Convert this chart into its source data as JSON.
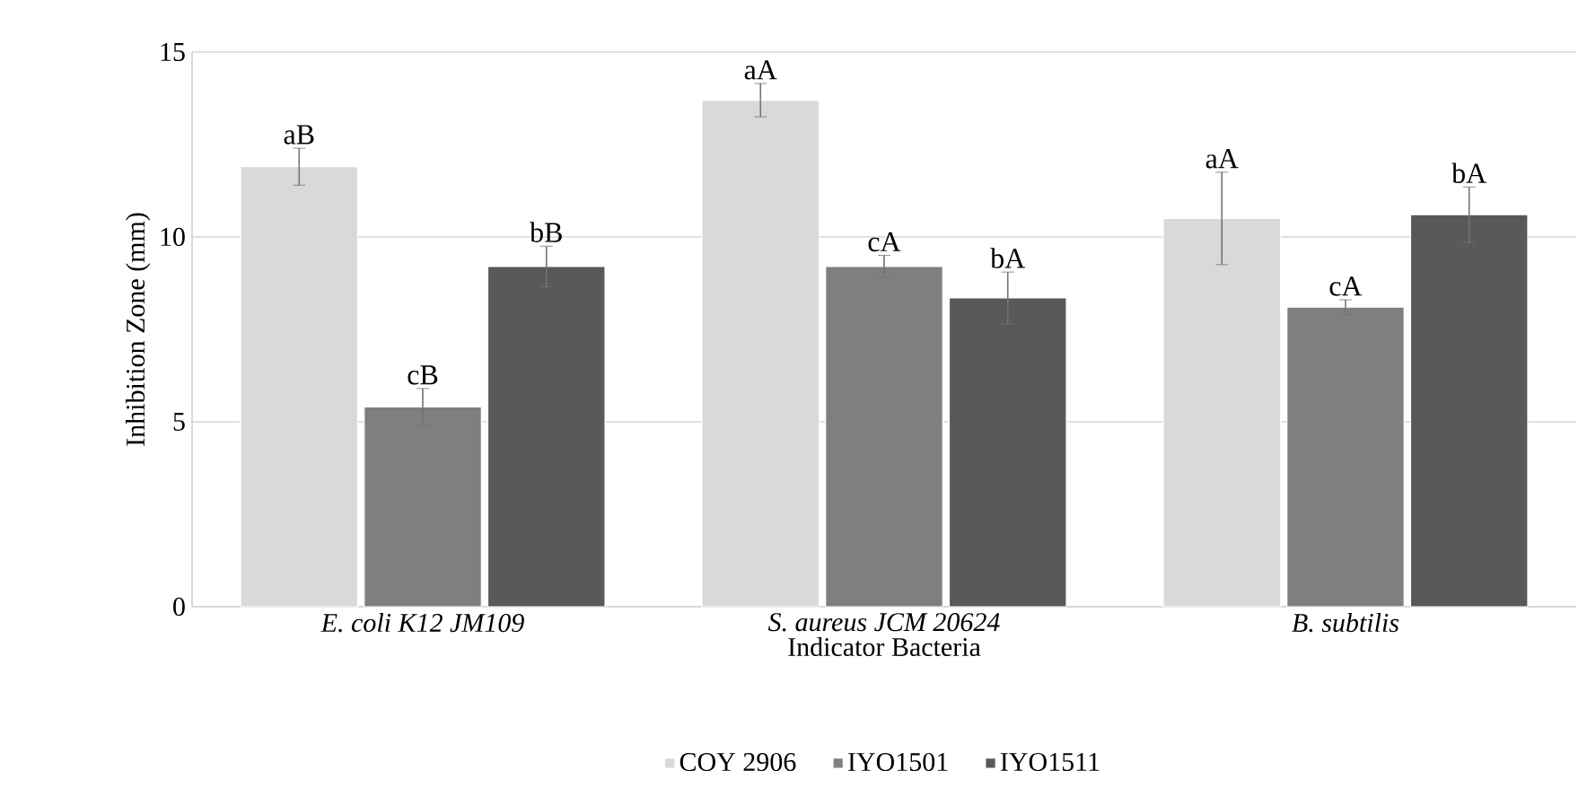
{
  "chart_data": {
    "type": "bar",
    "xlabel": "Indicator Bacteria",
    "ylabel": "Inhibition Zone (mm)",
    "categories": [
      "E. coli K12 JM109",
      "S. aureus JCM 20624",
      "B. subtilis"
    ],
    "series": [
      {
        "name": "COY 2906",
        "color": "#d9d9d9",
        "values": [
          11.9,
          13.7,
          10.5
        ],
        "errors": [
          0.5,
          0.45,
          1.25
        ],
        "value_labels": [
          "aB",
          "aA",
          "aA"
        ]
      },
      {
        "name": "IYO1501",
        "color": "#7f7f7f",
        "values": [
          5.4,
          9.2,
          8.1
        ],
        "errors": [
          0.5,
          0.3,
          0.2
        ],
        "value_labels": [
          "cB",
          "cA",
          "cA"
        ]
      },
      {
        "name": "IYO1511",
        "color": "#595959",
        "values": [
          9.2,
          8.35,
          10.6
        ],
        "errors": [
          0.55,
          0.7,
          0.75
        ],
        "value_labels": [
          "bB",
          "bA",
          "bA"
        ]
      }
    ],
    "ylim": [
      0,
      15
    ],
    "yticks": [
      0,
      5,
      10,
      15
    ],
    "grid": "y",
    "legend": "bottom"
  }
}
